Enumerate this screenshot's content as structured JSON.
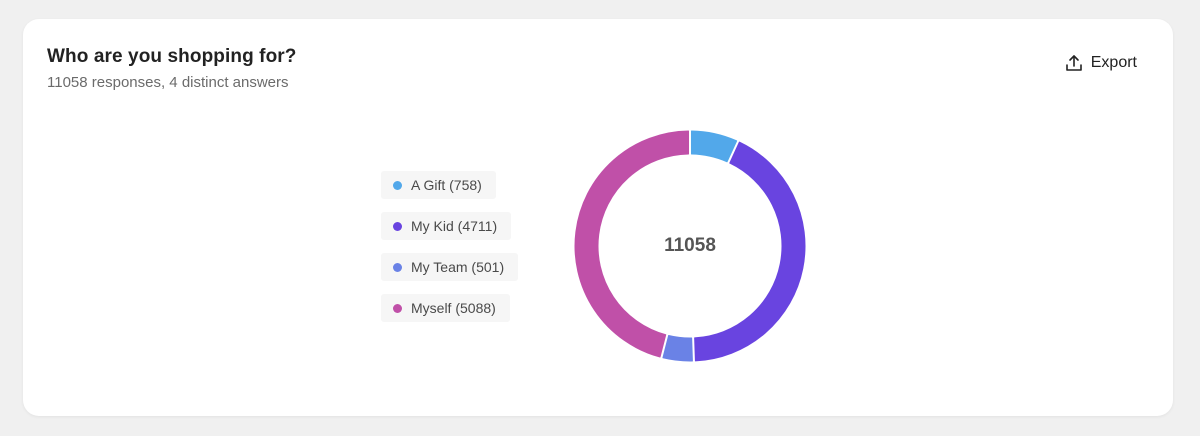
{
  "card": {
    "title": "Who are you shopping for?",
    "subtitle": "11058 responses, 4 distinct answers",
    "export_label": "Export",
    "export_icon": "upload-icon"
  },
  "chart_data": {
    "type": "pie",
    "variant": "donut",
    "center_label": "11058",
    "categories": [
      "A Gift",
      "My Kid",
      "My Team",
      "Myself"
    ],
    "values": [
      758,
      4711,
      501,
      5088
    ],
    "legend_labels": [
      "A Gift (758)",
      "My Kid (4711)",
      "My Team (501)",
      "Myself (5088)"
    ],
    "colors": [
      "#52a8ea",
      "#6944e0",
      "#6a82e6",
      "#c050a8"
    ],
    "legend_position": "left"
  }
}
